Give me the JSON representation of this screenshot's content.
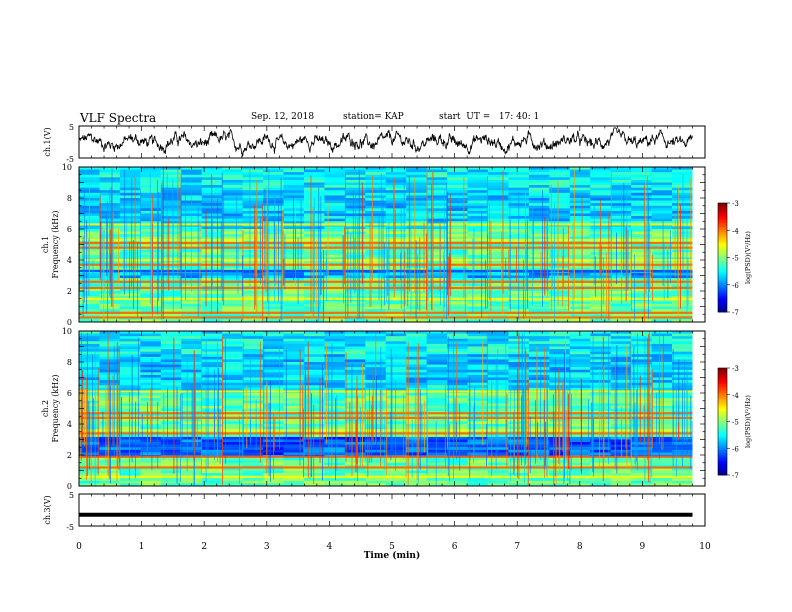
{
  "header": {
    "title": "VLF Spectra",
    "date": "Sep. 12, 2018",
    "station": "station= KAP",
    "start": "start  UT =   17: 40: 1"
  },
  "chart_data": [
    {
      "id": "ch1-waveform",
      "type": "line",
      "ylabel": "ch.1(V)",
      "ylim": [
        -5,
        5
      ],
      "yticks": [
        "5",
        "-5"
      ],
      "xlim": [
        0,
        10
      ],
      "data_end_min": 9.8,
      "series_color": "#000000",
      "note": "noisy waveform roughly between -4 and +4 V"
    },
    {
      "id": "ch1-spectrogram",
      "type": "heatmap",
      "ylabel_line1": "ch.1",
      "ylabel_line2": "Frequency (kHz)",
      "ylim": [
        0,
        10
      ],
      "yticks": [
        "0",
        "2",
        "4",
        "6",
        "8",
        "10"
      ],
      "xlim": [
        0,
        10
      ],
      "data_end_min": 9.8,
      "colorbar": {
        "label": "log(PSD)(V²/Hz)",
        "range": [
          -7,
          -3
        ],
        "ticks": [
          "-3",
          "-4",
          "-5",
          "-6",
          "-7"
        ]
      },
      "bands": [
        {
          "f": 0.3,
          "level": "high"
        },
        {
          "f": 0.6,
          "level": "high"
        },
        {
          "f": 1.5,
          "level": "mid"
        },
        {
          "f": 2.2,
          "level": "high"
        },
        {
          "f": 2.6,
          "level": "high"
        },
        {
          "f": 3.3,
          "level": "low"
        },
        {
          "f": 3.7,
          "level": "high"
        },
        {
          "f": 4.0,
          "level": "mid"
        },
        {
          "f": 4.8,
          "level": "high"
        },
        {
          "f": 5.1,
          "level": "high"
        },
        {
          "f": 5.3,
          "level": "mid"
        },
        {
          "f": 6.3,
          "level": "mid"
        }
      ]
    },
    {
      "id": "ch2-spectrogram",
      "type": "heatmap",
      "ylabel_line1": "ch.2",
      "ylabel_line2": "Frequency (kHz)",
      "ylim": [
        0,
        10
      ],
      "yticks": [
        "0",
        "2",
        "4",
        "6",
        "8",
        "10"
      ],
      "xlim": [
        0,
        10
      ],
      "data_end_min": 9.8,
      "colorbar": {
        "label": "log(PSD)(V²/Hz)",
        "range": [
          -7,
          -3
        ],
        "ticks": [
          "-3",
          "-4",
          "-5",
          "-6",
          "-7"
        ]
      },
      "bands": [
        {
          "f": 0.6,
          "level": "mid"
        },
        {
          "f": 1.2,
          "level": "high"
        },
        {
          "f": 1.9,
          "level": "high"
        },
        {
          "f": 2.6,
          "level": "low"
        },
        {
          "f": 3.4,
          "level": "high"
        },
        {
          "f": 3.6,
          "level": "mid"
        },
        {
          "f": 4.4,
          "level": "high"
        },
        {
          "f": 4.7,
          "level": "high"
        },
        {
          "f": 6.1,
          "level": "mid"
        }
      ]
    },
    {
      "id": "ch3-waveform",
      "type": "line",
      "ylabel": "ch.3(V)",
      "ylim": [
        -5,
        5
      ],
      "yticks": [
        "5",
        "-5"
      ],
      "xlim": [
        0,
        10
      ],
      "xticks": [
        "0",
        "1",
        "2",
        "3",
        "4",
        "5",
        "6",
        "7",
        "8",
        "9",
        "10"
      ],
      "xlabel": "Time  (min)",
      "data_end_min": 9.8,
      "constant_value": -1.5
    }
  ]
}
